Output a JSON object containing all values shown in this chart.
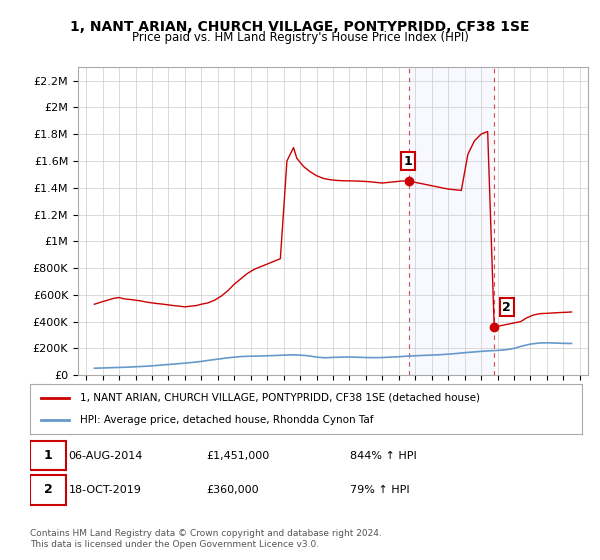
{
  "title": "1, NANT ARIAN, CHURCH VILLAGE, PONTYPRIDD, CF38 1SE",
  "subtitle": "Price paid vs. HM Land Registry's House Price Index (HPI)",
  "ylabel_ticks": [
    "£0",
    "£200K",
    "£400K",
    "£600K",
    "£800K",
    "£1M",
    "£1.2M",
    "£1.4M",
    "£1.6M",
    "£1.8M",
    "£2M",
    "£2.2M"
  ],
  "ytick_values": [
    0,
    200000,
    400000,
    600000,
    800000,
    1000000,
    1200000,
    1400000,
    1600000,
    1800000,
    2000000,
    2200000
  ],
  "ylim": [
    0,
    2300000
  ],
  "hpi_color": "#6699cc",
  "price_color": "#cc0000",
  "marker1_date": 2014.6,
  "marker1_price": 1451000,
  "marker2_date": 2019.8,
  "marker2_price": 360000,
  "legend_label1": "1, NANT ARIAN, CHURCH VILLAGE, PONTYPRIDD, CF38 1SE (detached house)",
  "legend_label2": "HPI: Average price, detached house, Rhondda Cynon Taf",
  "annotation1": "1   06-AUG-2014      £1,451,000      844% ↑ HPI",
  "annotation2": "2   18-OCT-2019        £360,000        79% ↑ HPI",
  "footer": "Contains HM Land Registry data © Crown copyright and database right 2024.\nThis data is licensed under the Open Government Licence v3.0.",
  "background_color": "#ffffff",
  "grid_color": "#cccccc",
  "hpi_data_x": [
    1995.5,
    1996.0,
    1996.5,
    1997.0,
    1997.5,
    1998.0,
    1998.5,
    1999.0,
    1999.5,
    2000.0,
    2000.5,
    2001.0,
    2001.5,
    2002.0,
    2002.5,
    2003.0,
    2003.5,
    2004.0,
    2004.5,
    2005.0,
    2005.5,
    2006.0,
    2006.5,
    2007.0,
    2007.5,
    2008.0,
    2008.5,
    2009.0,
    2009.5,
    2010.0,
    2010.5,
    2011.0,
    2011.5,
    2012.0,
    2012.5,
    2013.0,
    2013.5,
    2014.0,
    2014.5,
    2015.0,
    2015.5,
    2016.0,
    2016.5,
    2017.0,
    2017.5,
    2018.0,
    2018.5,
    2019.0,
    2019.5,
    2020.0,
    2020.5,
    2021.0,
    2021.5,
    2022.0,
    2022.5,
    2023.0,
    2023.5,
    2024.0,
    2024.5
  ],
  "hpi_data_y": [
    52000,
    54000,
    56000,
    58000,
    60000,
    63000,
    66000,
    70000,
    75000,
    80000,
    85000,
    90000,
    96000,
    103000,
    112000,
    120000,
    128000,
    135000,
    140000,
    142000,
    143000,
    145000,
    147000,
    150000,
    152000,
    150000,
    145000,
    135000,
    130000,
    133000,
    135000,
    136000,
    134000,
    132000,
    131000,
    132000,
    135000,
    138000,
    142000,
    145000,
    148000,
    150000,
    153000,
    157000,
    162000,
    168000,
    173000,
    178000,
    182000,
    185000,
    190000,
    200000,
    218000,
    232000,
    240000,
    242000,
    240000,
    238000,
    237000
  ],
  "price_data_x": [
    1995.5,
    1996.0,
    1996.3,
    1996.7,
    1997.0,
    1997.3,
    1997.7,
    1998.0,
    1998.3,
    1998.7,
    1999.0,
    1999.3,
    1999.7,
    2000.0,
    2000.3,
    2000.7,
    2001.0,
    2001.3,
    2001.7,
    2002.0,
    2002.4,
    2002.8,
    2003.2,
    2003.6,
    2004.0,
    2004.4,
    2004.8,
    2005.2,
    2005.6,
    2006.0,
    2006.4,
    2006.8,
    2007.2,
    2007.6,
    2007.8,
    2008.2,
    2008.6,
    2009.0,
    2009.4,
    2009.8,
    2010.2,
    2010.6,
    2011.0,
    2011.4,
    2011.8,
    2012.2,
    2012.6,
    2013.0,
    2013.4,
    2013.8,
    2014.2,
    2014.6,
    2015.0,
    2015.4,
    2015.8,
    2016.2,
    2016.6,
    2017.0,
    2017.4,
    2017.8,
    2018.2,
    2018.6,
    2019.0,
    2019.4,
    2019.8,
    2020.2,
    2020.6,
    2021.0,
    2021.4,
    2021.8,
    2022.2,
    2022.6,
    2023.0,
    2023.4,
    2023.8,
    2024.2,
    2024.5
  ],
  "price_data_y": [
    530000,
    550000,
    560000,
    575000,
    580000,
    570000,
    565000,
    560000,
    555000,
    545000,
    540000,
    535000,
    530000,
    525000,
    520000,
    515000,
    510000,
    515000,
    520000,
    530000,
    540000,
    560000,
    590000,
    630000,
    680000,
    720000,
    760000,
    790000,
    810000,
    830000,
    850000,
    870000,
    1600000,
    1700000,
    1620000,
    1560000,
    1520000,
    1490000,
    1470000,
    1460000,
    1455000,
    1452000,
    1451000,
    1450000,
    1448000,
    1445000,
    1440000,
    1435000,
    1440000,
    1445000,
    1450000,
    1451000,
    1440000,
    1430000,
    1420000,
    1410000,
    1400000,
    1390000,
    1385000,
    1380000,
    1650000,
    1750000,
    1800000,
    1820000,
    360000,
    370000,
    380000,
    390000,
    400000,
    430000,
    450000,
    460000,
    462000,
    465000,
    468000,
    470000,
    472000
  ]
}
